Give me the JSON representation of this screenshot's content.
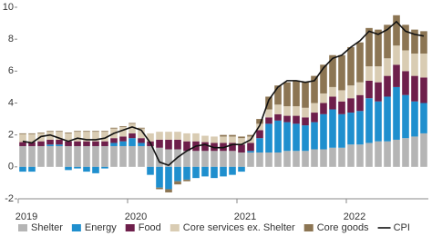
{
  "chart_data": {
    "type": "bar",
    "stacked": true,
    "categories": [
      "2019",
      null,
      null,
      null,
      null,
      null,
      null,
      null,
      null,
      null,
      null,
      null,
      "2020",
      null,
      null,
      null,
      null,
      null,
      null,
      null,
      null,
      null,
      null,
      null,
      "2021",
      null,
      null,
      null,
      null,
      null,
      null,
      null,
      null,
      null,
      null,
      null,
      "2022",
      null,
      null,
      null,
      null,
      null,
      null,
      null,
      null
    ],
    "series": [
      {
        "name": "Shelter",
        "color": "#b5b5b5",
        "values": [
          1.3,
          1.3,
          1.3,
          1.3,
          1.3,
          1.3,
          1.3,
          1.3,
          1.3,
          1.3,
          1.3,
          1.3,
          1.3,
          1.3,
          1.3,
          1.2,
          1.1,
          1.1,
          1.0,
          1.0,
          1.0,
          1.0,
          1.0,
          1.0,
          0.9,
          0.9,
          0.9,
          0.9,
          0.9,
          1.0,
          1.0,
          1.0,
          1.1,
          1.1,
          1.2,
          1.2,
          1.4,
          1.4,
          1.5,
          1.6,
          1.6,
          1.7,
          1.8,
          1.9,
          2.1
        ]
      },
      {
        "name": "Energy",
        "color": "#1f8fce",
        "values": [
          -0.3,
          -0.3,
          0.0,
          0.1,
          0.1,
          -0.2,
          -0.1,
          -0.3,
          -0.4,
          -0.1,
          0.2,
          0.3,
          0.5,
          0.2,
          -0.5,
          -1.3,
          -1.4,
          -0.9,
          -0.8,
          -0.7,
          -0.6,
          -0.7,
          -0.6,
          -0.5,
          -0.3,
          0.1,
          0.9,
          1.8,
          2.0,
          1.8,
          1.7,
          1.6,
          1.7,
          2.2,
          2.4,
          2.1,
          2.0,
          2.1,
          2.8,
          2.5,
          2.8,
          3.3,
          2.7,
          2.2,
          1.9
        ]
      },
      {
        "name": "Food",
        "color": "#6e1f4b",
        "values": [
          0.25,
          0.25,
          0.3,
          0.3,
          0.3,
          0.3,
          0.3,
          0.3,
          0.3,
          0.3,
          0.3,
          0.3,
          0.3,
          0.3,
          0.3,
          0.5,
          0.6,
          0.6,
          0.6,
          0.6,
          0.55,
          0.5,
          0.5,
          0.5,
          0.5,
          0.5,
          0.5,
          0.4,
          0.4,
          0.4,
          0.5,
          0.5,
          0.6,
          0.7,
          0.8,
          0.8,
          0.9,
          1.0,
          1.1,
          1.2,
          1.3,
          1.4,
          1.5,
          1.6,
          1.6
        ]
      },
      {
        "name": "Core services ex. Shelter",
        "color": "#d9ccb3",
        "values": [
          0.5,
          0.5,
          0.5,
          0.5,
          0.5,
          0.5,
          0.6,
          0.6,
          0.6,
          0.6,
          0.6,
          0.6,
          0.6,
          0.6,
          0.5,
          0.5,
          0.5,
          0.5,
          0.5,
          0.5,
          0.4,
          0.4,
          0.4,
          0.4,
          0.4,
          0.4,
          0.4,
          0.5,
          0.6,
          0.6,
          0.6,
          0.6,
          0.6,
          0.6,
          0.6,
          0.7,
          0.8,
          0.8,
          0.9,
          1.0,
          1.1,
          1.2,
          1.3,
          1.4,
          1.5
        ]
      },
      {
        "name": "Core goods",
        "color": "#8c7553",
        "values": [
          0.05,
          0.05,
          0.05,
          0.05,
          0.05,
          0.05,
          0.05,
          0.05,
          0.05,
          0.05,
          0.05,
          0.05,
          0.05,
          0.05,
          0.0,
          -0.1,
          -0.2,
          -0.2,
          -0.1,
          0.0,
          0.0,
          0.0,
          0.1,
          0.1,
          0.1,
          0.1,
          0.3,
          0.8,
          1.2,
          1.5,
          1.6,
          1.6,
          1.7,
          1.8,
          2.0,
          2.2,
          2.4,
          2.5,
          2.4,
          2.3,
          2.1,
          1.9,
          1.6,
          1.5,
          1.4
        ]
      }
    ],
    "line": {
      "name": "CPI",
      "color": "#111111",
      "values": [
        1.6,
        1.5,
        1.9,
        2.0,
        1.8,
        1.6,
        1.8,
        1.7,
        1.7,
        1.8,
        2.1,
        2.3,
        2.5,
        2.3,
        1.5,
        0.3,
        0.1,
        0.6,
        1.0,
        1.3,
        1.4,
        1.2,
        1.2,
        1.4,
        1.4,
        1.7,
        2.6,
        4.2,
        5.0,
        5.4,
        5.4,
        5.3,
        5.4,
        6.2,
        6.8,
        7.0,
        7.5,
        7.9,
        8.5,
        8.3,
        8.6,
        9.1,
        8.5,
        8.3,
        8.2
      ]
    },
    "ylim": [
      -2,
      10
    ],
    "yticks": [
      -2,
      0,
      2,
      4,
      6,
      8,
      10
    ],
    "legend": "bottom"
  }
}
